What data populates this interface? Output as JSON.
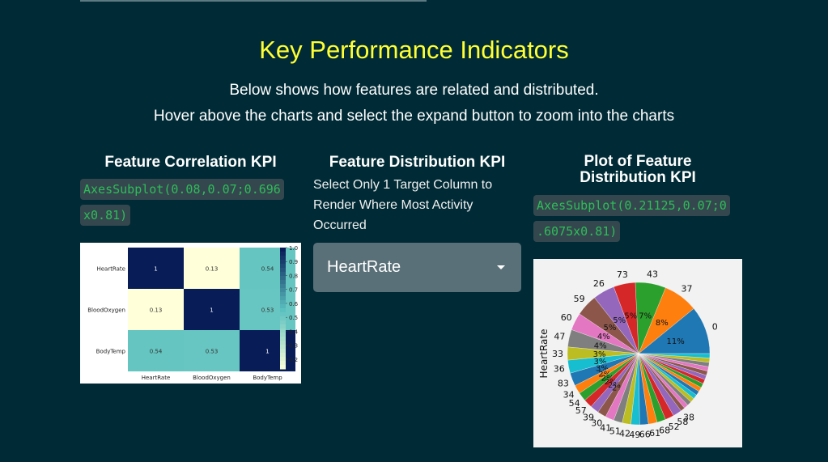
{
  "header": {
    "title": "Key Performance Indicators",
    "subtitle_1": "Below shows how features are related and distributed.",
    "subtitle_2": "Hover above the charts and select the expand button to zoom into the charts"
  },
  "correlation": {
    "title": "Feature Correlation KPI",
    "code_line1": "AxesSubplot(0.08,0.07;0.696",
    "code_line2": "x0.81)"
  },
  "distribution": {
    "title": "Feature Distribution KPI",
    "desc_line1": "Select Only 1 Target Column to",
    "desc_line2": "Render Where Most Activity",
    "desc_line3": "Occurred",
    "selected": "HeartRate"
  },
  "plot": {
    "title_line1": "Plot of Feature",
    "title_line2": "Distribution KPI",
    "code_line1": "AxesSubplot(0.21125,0.07;0",
    "code_line2": ".6075x0.81)"
  },
  "chart_data": [
    {
      "type": "heatmap",
      "rows": [
        "HeartRate",
        "BloodOxygen",
        "BodyTemp"
      ],
      "cols": [
        "HeartRate",
        "BloodOxygen",
        "BodyTemp"
      ],
      "values": [
        [
          1,
          0.13,
          0.54
        ],
        [
          0.13,
          1,
          0.53
        ],
        [
          0.54,
          0.53,
          1
        ]
      ],
      "value_labels": [
        [
          "1",
          "0.13",
          "0.54"
        ],
        [
          "0.13",
          "1",
          "0.53"
        ],
        [
          "0.54",
          "0.53",
          "1"
        ]
      ],
      "colorbar_ticks": [
        "1.0",
        "0.9",
        "0.8",
        "0.7",
        "0.6",
        "0.5",
        "0.4",
        "0.3",
        "0.2"
      ],
      "colors": {
        "low": "#ffffd9",
        "mid": "#5bc1c0",
        "high": "#081d58"
      }
    },
    {
      "type": "pie",
      "ylabel": "HeartRate",
      "outer_labels": [
        "0",
        "37",
        "43",
        "73",
        "26",
        "59",
        "60",
        "47",
        "33",
        "36",
        "83",
        "34",
        "54",
        "57",
        "39",
        "30",
        "41",
        "51",
        "42",
        "49",
        "66",
        "61",
        "68",
        "52",
        "58",
        "38"
      ],
      "pct_labels": [
        "11%",
        "8%",
        "7%",
        "5%",
        "5%",
        "5%",
        "4%",
        "4%",
        "3%",
        "3%",
        "3%",
        "2%",
        "2%",
        "2%",
        "2%",
        "2%"
      ],
      "slice_values": [
        11,
        8,
        7,
        5,
        5,
        5,
        4,
        4,
        3,
        3,
        3,
        2,
        2,
        2,
        2,
        2,
        2,
        2,
        2,
        2,
        2,
        2,
        2,
        2,
        2,
        1,
        1,
        1,
        1,
        1,
        1,
        1,
        1,
        1,
        1,
        1,
        1,
        1,
        1,
        1
      ],
      "colors": [
        "#1f77b4",
        "#ff7f0e",
        "#2ca02c",
        "#d62728",
        "#9467bd",
        "#8c564b",
        "#e377c2",
        "#7f7f7f",
        "#bcbd22",
        "#17becf"
      ]
    }
  ]
}
